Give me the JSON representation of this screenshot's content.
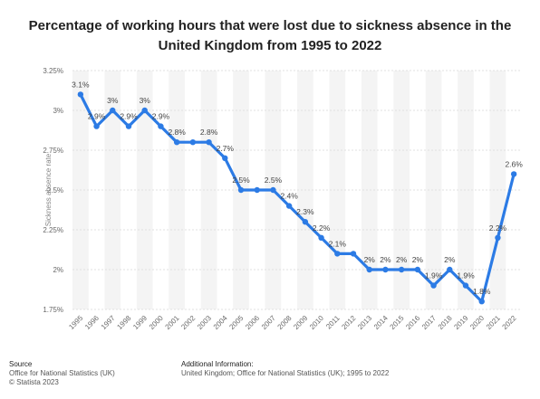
{
  "chart_data": {
    "type": "line",
    "title": "Percentage of working hours that were lost due to sickness absence in the United Kingdom from 1995 to 2022",
    "ylabel": "Sickness absence rate",
    "xlabel": "",
    "ylim": [
      1.75,
      3.25
    ],
    "yticks": [
      "1.75%",
      "2%",
      "2.25%",
      "2.5%",
      "2.75%",
      "3%",
      "3.25%"
    ],
    "yticks_values": [
      1.75,
      2.0,
      2.25,
      2.5,
      2.75,
      3.0,
      3.25
    ],
    "grid": true,
    "color": "#2c7be5",
    "x": [
      "1995",
      "1996",
      "1997",
      "1998",
      "1999",
      "2000",
      "2001",
      "2002",
      "2003",
      "2004",
      "2005",
      "2006",
      "2007",
      "2008",
      "2009",
      "2010",
      "2011",
      "2012",
      "2013",
      "2014",
      "2015",
      "2016",
      "2017",
      "2018",
      "2019",
      "2020",
      "2021",
      "2022"
    ],
    "values": [
      3.1,
      2.9,
      3.0,
      2.9,
      3.0,
      2.9,
      2.8,
      2.8,
      2.8,
      2.7,
      2.5,
      2.5,
      2.5,
      2.4,
      2.3,
      2.2,
      2.1,
      2.1,
      2.0,
      2.0,
      2.0,
      2.0,
      1.9,
      2.0,
      1.9,
      1.8,
      2.2,
      2.6
    ],
    "data_labels": [
      "3.1%",
      "2.9%",
      "3%",
      "2.9%",
      "3%",
      "2.9%",
      "2.8%",
      "",
      "2.8%",
      "2.7%",
      "2.5%",
      "",
      "2.5%",
      "2.4%",
      "2.3%",
      "2.2%",
      "2.1%",
      "",
      "2%",
      "2%",
      "2%",
      "2%",
      "1.9%",
      "2%",
      "1.9%",
      "1.8%",
      "2.2%",
      "2.6%"
    ]
  },
  "footer": {
    "source_heading": "Source",
    "source_line1": "Office for National Statistics (UK)",
    "source_line2": "© Statista 2023",
    "info_heading": "Additional Information:",
    "info_line1": "United Kingdom; Office for National Statistics (UK); 1995 to 2022"
  }
}
